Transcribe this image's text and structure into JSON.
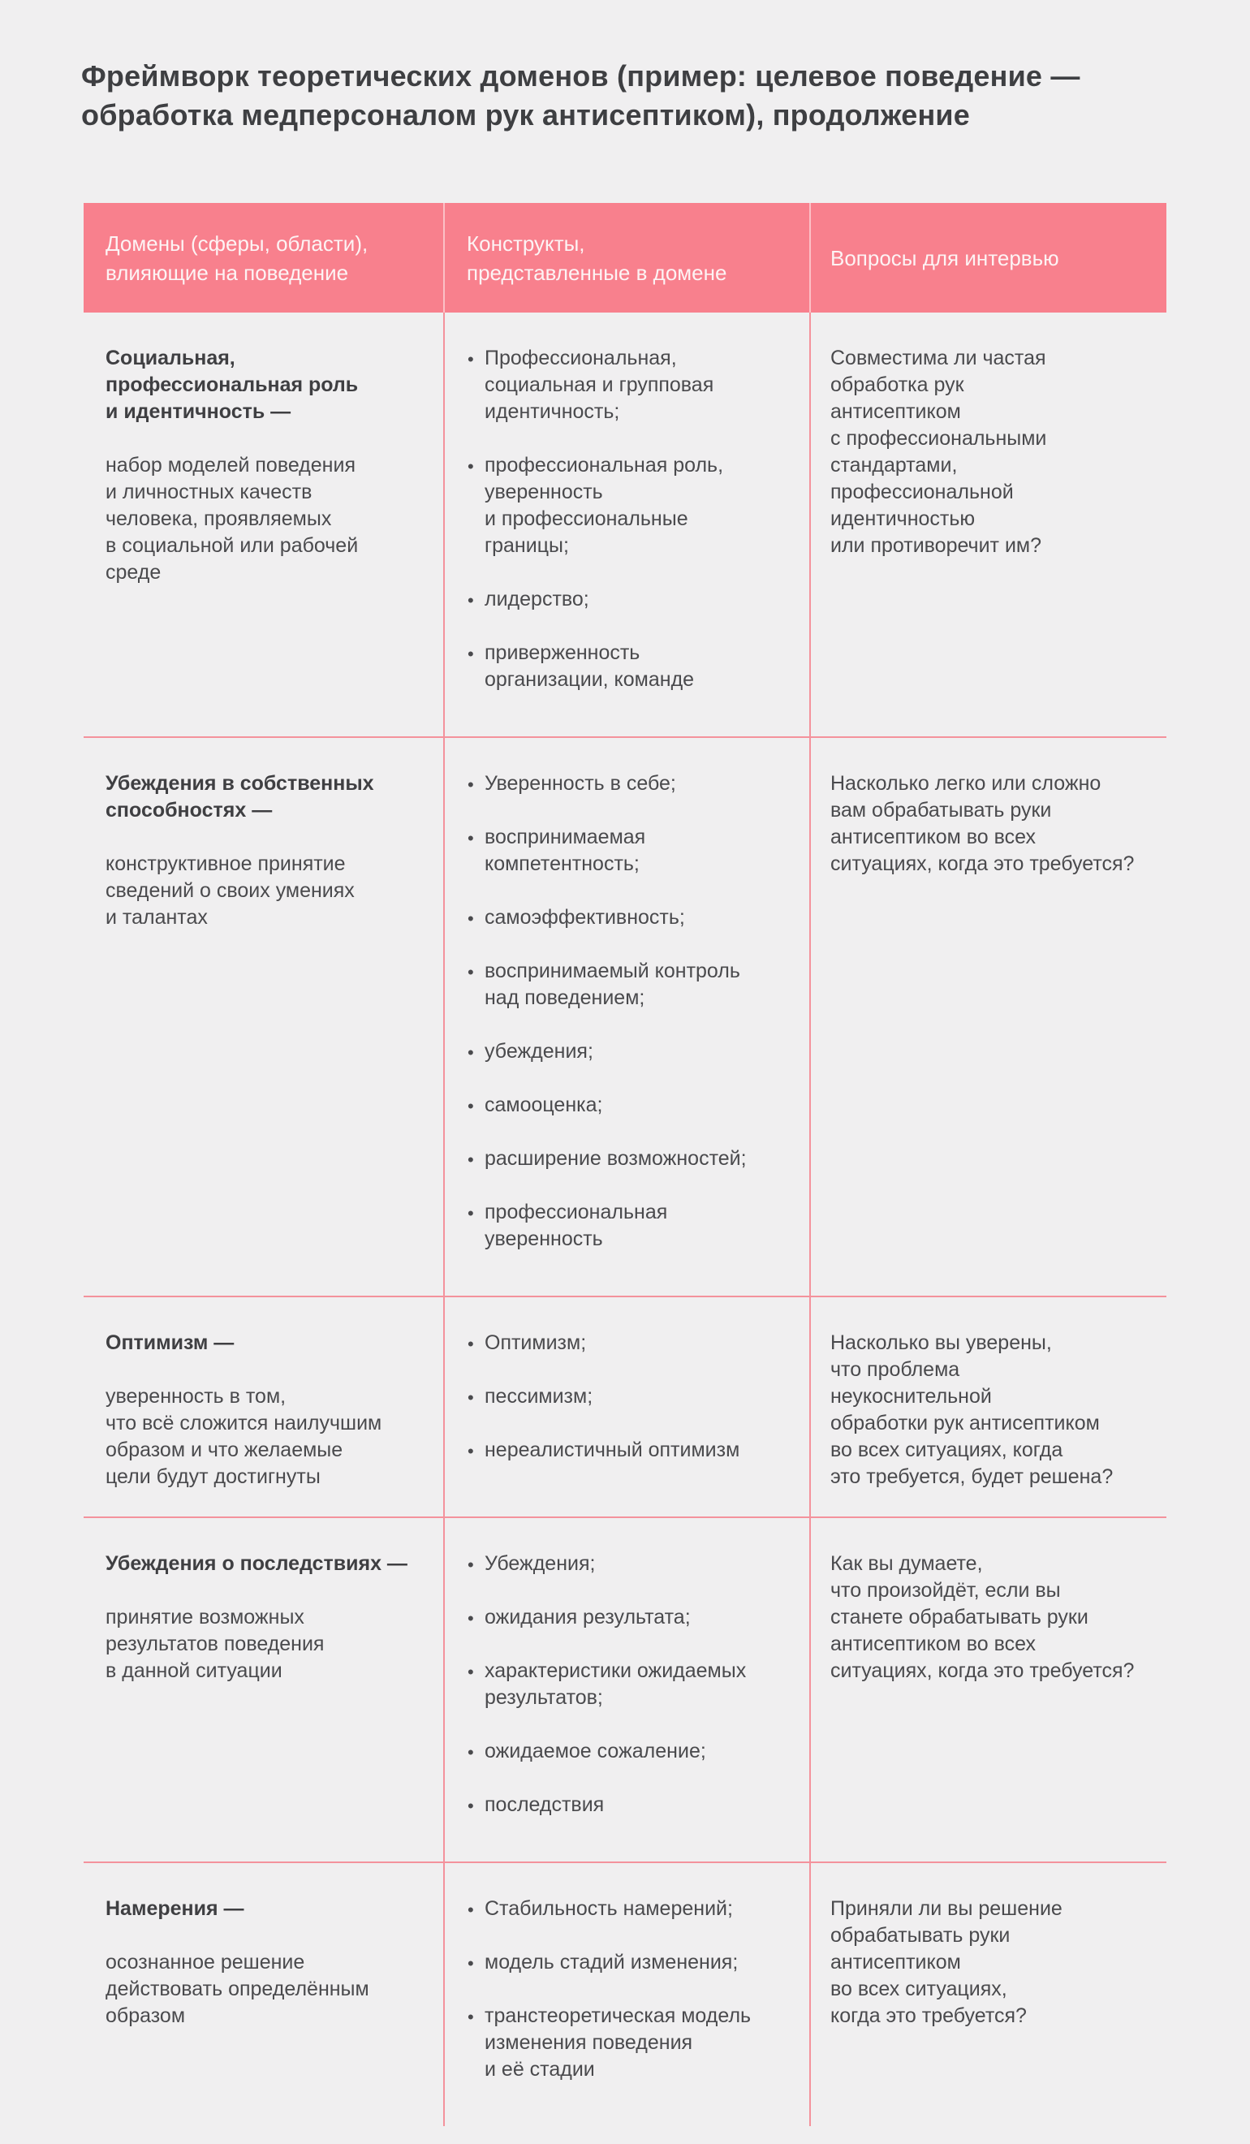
{
  "page": {
    "title": "Фреймворк теоретических доменов (пример: целевое поведение —\nобработка медперсоналом рук антисептиком), продолжение"
  },
  "colors": {
    "page_bg": "#f0eff0",
    "header_bg": "#f8808d",
    "header_text": "#fdf3f4",
    "border": "#f4929c",
    "body_text": "#4a4a4d",
    "heading_text": "#3f3f42"
  },
  "table": {
    "columns": [
      {
        "label": "Домены (сферы, области),\nвлияющие на поведение"
      },
      {
        "label": "Конструкты,\nпредставленные в домене"
      },
      {
        "label": "Вопросы для интервью"
      }
    ],
    "rows": [
      {
        "domain_term": "Социальная,\nпрофессиональная роль\nи идентичность —",
        "domain_definition": "набор моделей поведения\nи личностных качеств\nчеловека, проявляемых\nв социальной или рабочей\nсреде",
        "constructs": [
          "Профессиональная,\nсоциальная и групповая\nидентичность;",
          "профессиональная роль,\nуверенность\nи профессиональные\nграницы;",
          "лидерство;",
          "приверженность\nорганизации, команде"
        ],
        "question": "Совместима ли частая\nобработка рук\nантисептиком\nс профессиональными\nстандартами,\nпрофессиональной\nидентичностью\nили противоречит им?"
      },
      {
        "domain_term": "Убеждения в собственных\nспособностях —",
        "domain_definition": "конструктивное принятие\nсведений о своих умениях\nи талантах",
        "constructs": [
          "Уверенность в себе;",
          "воспринимаемая\nкомпетентность;",
          "самоэффективность;",
          "воспринимаемый контроль\nнад поведением;",
          "убеждения;",
          "самооценка;",
          "расширение возможностей;",
          "профессиональная\nуверенность"
        ],
        "question": "Насколько легко или сложно\nвам обрабатывать руки\nантисептиком во всех\nситуациях, когда это требуется?"
      },
      {
        "domain_term": "Оптимизм —",
        "domain_definition": "уверенность в том,\nчто всё сложится наилучшим\nобразом и что желаемые\nцели будут достигнуты",
        "constructs": [
          "Оптимизм;",
          "пессимизм;",
          "нереалистичный оптимизм"
        ],
        "question": "Насколько вы уверены,\nчто проблема\nнеукоснительной\nобработки рук антисептиком\nво всех ситуациях, когда\nэто требуется, будет решена?"
      },
      {
        "domain_term": "Убеждения о последствиях —",
        "domain_definition": "принятие возможных\nрезультатов поведения\nв данной ситуации",
        "constructs": [
          "Убеждения;",
          "ожидания результата;",
          "характеристики ожидаемых\nрезультатов;",
          "ожидаемое сожаление;",
          "последствия"
        ],
        "question": "Как вы думаете,\nчто произойдёт, если вы\nстанете обрабатывать руки\nантисептиком во всех\nситуациях, когда это требуется?"
      },
      {
        "domain_term": "Намерения —",
        "domain_definition": "осознанное решение\nдействовать определённым\nобразом",
        "constructs": [
          "Стабильность намерений;",
          "модель стадий изменения;",
          "транстеоретическая модель\nизменения поведения\nи её стадии"
        ],
        "question": "Приняли ли вы решение\nобрабатывать руки\nантисептиком\nво всех ситуациях,\nкогда это требуется?"
      }
    ]
  }
}
